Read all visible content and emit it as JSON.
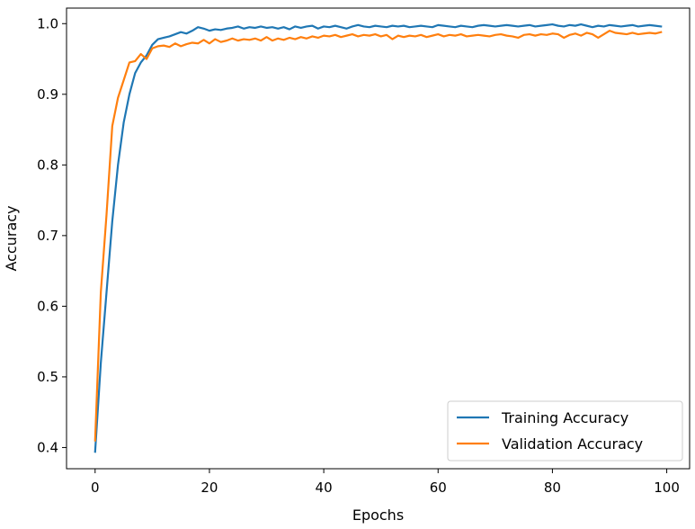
{
  "chart_data": {
    "type": "line",
    "title": "",
    "xlabel": "Epochs",
    "ylabel": "Accuracy",
    "xlim": [
      -5,
      104
    ],
    "ylim": [
      0.37,
      1.022
    ],
    "xticks": [
      0,
      20,
      40,
      60,
      80,
      100
    ],
    "yticks": [
      0.4,
      0.5,
      0.6,
      0.7,
      0.8,
      0.9,
      1.0
    ],
    "xtick_labels": [
      "0",
      "20",
      "40",
      "60",
      "80",
      "100"
    ],
    "ytick_labels": [
      "0.4",
      "0.5",
      "0.6",
      "0.7",
      "0.8",
      "0.9",
      "1.0"
    ],
    "grid": false,
    "legend_position": "lower-right",
    "x": [
      0,
      1,
      2,
      3,
      4,
      5,
      6,
      7,
      8,
      9,
      10,
      11,
      12,
      13,
      14,
      15,
      16,
      17,
      18,
      19,
      20,
      21,
      22,
      23,
      24,
      25,
      26,
      27,
      28,
      29,
      30,
      31,
      32,
      33,
      34,
      35,
      36,
      37,
      38,
      39,
      40,
      41,
      42,
      43,
      44,
      45,
      46,
      47,
      48,
      49,
      50,
      51,
      52,
      53,
      54,
      55,
      56,
      57,
      58,
      59,
      60,
      61,
      62,
      63,
      64,
      65,
      66,
      67,
      68,
      69,
      70,
      71,
      72,
      73,
      74,
      75,
      76,
      77,
      78,
      79,
      80,
      81,
      82,
      83,
      84,
      85,
      86,
      87,
      88,
      89,
      90,
      91,
      92,
      93,
      94,
      95,
      96,
      97,
      98,
      99
    ],
    "series": [
      {
        "name": "Training Accuracy",
        "color": "#1f77b4",
        "values": [
          0.394,
          0.52,
          0.62,
          0.72,
          0.8,
          0.86,
          0.9,
          0.93,
          0.945,
          0.955,
          0.97,
          0.978,
          0.98,
          0.982,
          0.985,
          0.988,
          0.986,
          0.99,
          0.995,
          0.993,
          0.99,
          0.992,
          0.991,
          0.993,
          0.994,
          0.996,
          0.993,
          0.995,
          0.994,
          0.996,
          0.994,
          0.995,
          0.993,
          0.995,
          0.992,
          0.996,
          0.994,
          0.996,
          0.997,
          0.993,
          0.996,
          0.995,
          0.997,
          0.995,
          0.993,
          0.996,
          0.998,
          0.996,
          0.995,
          0.997,
          0.996,
          0.995,
          0.997,
          0.996,
          0.997,
          0.995,
          0.996,
          0.997,
          0.996,
          0.995,
          0.998,
          0.997,
          0.996,
          0.995,
          0.997,
          0.996,
          0.995,
          0.997,
          0.998,
          0.997,
          0.996,
          0.997,
          0.998,
          0.997,
          0.996,
          0.997,
          0.998,
          0.996,
          0.997,
          0.998,
          0.999,
          0.997,
          0.996,
          0.998,
          0.997,
          0.999,
          0.997,
          0.995,
          0.997,
          0.996,
          0.998,
          0.997,
          0.996,
          0.997,
          0.998,
          0.996,
          0.997,
          0.998,
          0.997,
          0.996
        ]
      },
      {
        "name": "Validation Accuracy",
        "color": "#ff7f0e",
        "values": [
          0.41,
          0.62,
          0.73,
          0.855,
          0.895,
          0.92,
          0.945,
          0.947,
          0.957,
          0.95,
          0.965,
          0.968,
          0.969,
          0.967,
          0.972,
          0.968,
          0.971,
          0.973,
          0.972,
          0.977,
          0.972,
          0.978,
          0.974,
          0.976,
          0.979,
          0.976,
          0.978,
          0.977,
          0.979,
          0.976,
          0.981,
          0.976,
          0.979,
          0.977,
          0.98,
          0.978,
          0.981,
          0.979,
          0.982,
          0.98,
          0.983,
          0.982,
          0.984,
          0.981,
          0.983,
          0.985,
          0.982,
          0.984,
          0.983,
          0.985,
          0.982,
          0.984,
          0.978,
          0.983,
          0.981,
          0.983,
          0.982,
          0.984,
          0.981,
          0.983,
          0.985,
          0.982,
          0.984,
          0.983,
          0.985,
          0.982,
          0.983,
          0.984,
          0.983,
          0.982,
          0.984,
          0.985,
          0.983,
          0.982,
          0.98,
          0.984,
          0.985,
          0.983,
          0.985,
          0.984,
          0.986,
          0.985,
          0.98,
          0.984,
          0.986,
          0.983,
          0.987,
          0.985,
          0.98,
          0.985,
          0.99,
          0.987,
          0.986,
          0.985,
          0.987,
          0.985,
          0.986,
          0.987,
          0.986,
          0.988
        ]
      }
    ]
  }
}
